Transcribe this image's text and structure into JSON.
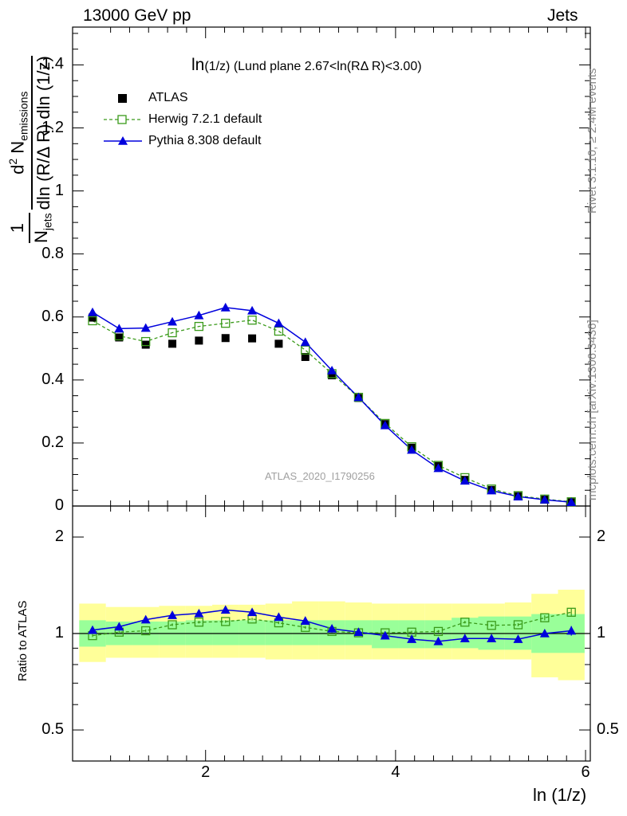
{
  "header": {
    "left": "13000 GeV pp",
    "right": "Jets"
  },
  "side_labels": {
    "rivet": "Rivet 3.1.10, ≥ 2.4M events",
    "mcplots": "mcplots.cern.ch [arXiv:1306.3436]"
  },
  "annotation": {
    "prefix": "ln",
    "arg": "(1/z)",
    "rest": "(Lund plane 2.67<ln(RΔ R)<3.00)"
  },
  "watermark": "ATLAS_2020_I1790256",
  "ytitle": {
    "num_one": "1",
    "den_pre": "N",
    "den_sub": "jets",
    "den_main": "dln (R/Δ R) dln (1/z)",
    "num2_pre": "d",
    "num2_sup": "2",
    "num2_main": " N",
    "num2_sub": "emissions"
  },
  "ratio_ylabel": "Ratio to ATLAS",
  "xlabel": "ln (1/z)",
  "legend": [
    {
      "label": "ATLAS",
      "color": "#000000",
      "marker": "filled-square"
    },
    {
      "label": "Herwig 7.2.1 default",
      "color": "#3a9a1a",
      "marker": "open-square",
      "dashed": true
    },
    {
      "label": "Pythia 8.308 default",
      "color": "#0000dd",
      "marker": "filled-triangle"
    }
  ],
  "colors": {
    "band_outer": "#ffff99",
    "band_inner": "#99ff99"
  },
  "chart_data": {
    "type": "line",
    "xlabel": "ln (1/z)",
    "xlim": [
      0.6,
      6.05
    ],
    "x_ticks": [
      2,
      4,
      6
    ],
    "main": {
      "ylim": [
        0,
        1.52
      ],
      "y_ticks": [
        0,
        0.2,
        0.4,
        0.6,
        0.8,
        1,
        1.2,
        1.4
      ],
      "y_tick_labels": [
        "0",
        "0.2",
        "0.4",
        "0.6",
        "0.8",
        "1",
        "1.2",
        "1.4"
      ]
    },
    "ratio": {
      "ylim": [
        0.4,
        2.5
      ],
      "log_scale": true,
      "y_ticks": [
        0.5,
        1,
        2
      ],
      "y_tick_labels": [
        "0.5",
        "1",
        "2"
      ]
    },
    "x": [
      0.81,
      1.09,
      1.37,
      1.65,
      1.93,
      2.21,
      2.49,
      2.77,
      3.05,
      3.33,
      3.61,
      3.89,
      4.17,
      4.45,
      4.73,
      5.01,
      5.29,
      5.57,
      5.85
    ],
    "series": [
      {
        "name": "ATLAS",
        "values": [
          0.598,
          0.535,
          0.512,
          0.515,
          0.525,
          0.533,
          0.532,
          0.515,
          0.473,
          0.415,
          0.343,
          0.26,
          0.185,
          0.127,
          0.083,
          0.051,
          0.031,
          0.02,
          0.012
        ]
      },
      {
        "name": "Herwig 7.2.1 default",
        "values": [
          0.588,
          0.54,
          0.522,
          0.55,
          0.57,
          0.58,
          0.59,
          0.555,
          0.495,
          0.42,
          0.345,
          0.262,
          0.188,
          0.129,
          0.09,
          0.054,
          0.033,
          0.022,
          0.0135
        ]
      },
      {
        "name": "Pythia 8.308 default",
        "values": [
          0.615,
          0.563,
          0.565,
          0.585,
          0.605,
          0.63,
          0.62,
          0.58,
          0.52,
          0.43,
          0.345,
          0.256,
          0.178,
          0.12,
          0.08,
          0.049,
          0.03,
          0.02,
          0.0122
        ]
      }
    ],
    "ratio_series": [
      {
        "name": "Herwig 7.2.1 default",
        "values": [
          0.985,
          1.01,
          1.02,
          1.065,
          1.085,
          1.09,
          1.11,
          1.08,
          1.045,
          1.015,
          1.005,
          1.005,
          1.01,
          1.015,
          1.085,
          1.06,
          1.065,
          1.12,
          1.165
        ]
      },
      {
        "name": "Pythia 8.308 default",
        "values": [
          1.025,
          1.05,
          1.105,
          1.14,
          1.155,
          1.185,
          1.165,
          1.125,
          1.095,
          1.035,
          1.01,
          0.985,
          0.96,
          0.945,
          0.965,
          0.965,
          0.96,
          1.0,
          1.02
        ]
      }
    ],
    "ratio_errors": {
      "pythia": [
        0.01,
        0.01,
        0.01,
        0.01,
        0.01,
        0.01,
        0.01,
        0.01,
        0.01,
        0.01,
        0.01,
        0.01,
        0.01,
        0.01,
        0.01,
        0.01,
        0.012,
        0.025,
        0.035
      ],
      "herwig": [
        0.01,
        0.01,
        0.01,
        0.01,
        0.01,
        0.01,
        0.01,
        0.01,
        0.01,
        0.01,
        0.01,
        0.01,
        0.01,
        0.01,
        0.01,
        0.01,
        0.012,
        0.02,
        0.03
      ]
    },
    "uncertainty_bands": {
      "bin_edges": [
        0.67,
        0.95,
        1.23,
        1.51,
        1.79,
        2.07,
        2.35,
        2.63,
        2.91,
        3.19,
        3.47,
        3.75,
        4.03,
        4.31,
        4.59,
        4.87,
        5.15,
        5.43,
        5.71,
        5.99
      ],
      "outer_lo": [
        0.815,
        0.84,
        0.84,
        0.84,
        0.84,
        0.84,
        0.84,
        0.83,
        0.83,
        0.83,
        0.83,
        0.83,
        0.83,
        0.83,
        0.83,
        0.83,
        0.83,
        0.73,
        0.715
      ],
      "outer_hi": [
        1.24,
        1.21,
        1.21,
        1.22,
        1.22,
        1.23,
        1.23,
        1.24,
        1.26,
        1.26,
        1.25,
        1.24,
        1.24,
        1.24,
        1.24,
        1.24,
        1.25,
        1.33,
        1.37
      ],
      "inner_lo": [
        0.91,
        0.92,
        0.92,
        0.92,
        0.92,
        0.92,
        0.92,
        0.92,
        0.92,
        0.92,
        0.92,
        0.9,
        0.9,
        0.9,
        0.9,
        0.89,
        0.89,
        0.87,
        0.87
      ],
      "inner_hi": [
        1.1,
        1.09,
        1.09,
        1.09,
        1.1,
        1.1,
        1.1,
        1.1,
        1.1,
        1.1,
        1.1,
        1.1,
        1.1,
        1.1,
        1.12,
        1.13,
        1.13,
        1.15,
        1.15
      ]
    }
  }
}
